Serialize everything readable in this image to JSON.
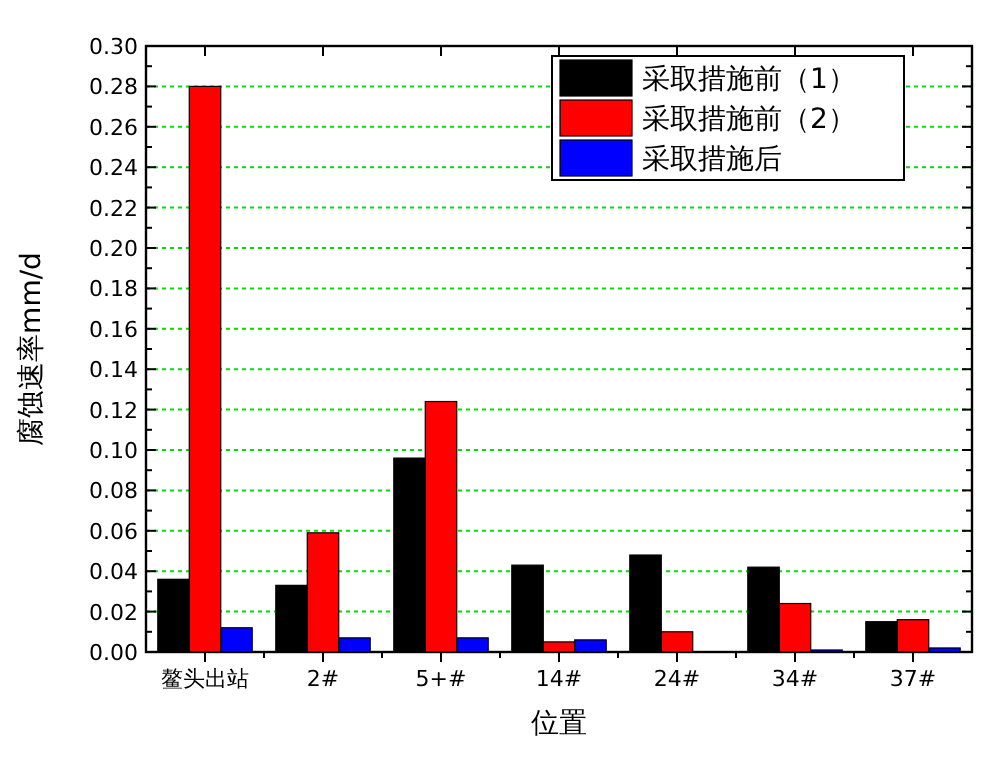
{
  "chart_data": {
    "type": "bar",
    "xlabel": "位置",
    "ylabel": "腐蚀速率mm/d",
    "categories": [
      "鳌头出站",
      "2#",
      "5+#",
      "14#",
      "24#",
      "34#",
      "37#"
    ],
    "series": [
      {
        "name": "采取措施前（1）",
        "color": "#000000",
        "values": [
          0.036,
          0.033,
          0.096,
          0.043,
          0.048,
          0.042,
          0.015
        ]
      },
      {
        "name": "采取措施前（2）",
        "color": "#ff0000",
        "values": [
          0.28,
          0.059,
          0.124,
          0.005,
          0.01,
          0.024,
          0.016
        ]
      },
      {
        "name": "采取措施后",
        "color": "#0000ff",
        "values": [
          0.012,
          0.007,
          0.007,
          0.006,
          0,
          0.001,
          0.002
        ]
      }
    ],
    "ylim": [
      0,
      0.3
    ],
    "yticks": [
      {
        "value": 0,
        "label": "0.00"
      },
      {
        "value": 0.02,
        "label": "0.02"
      },
      {
        "value": 0.04,
        "label": "0.04"
      },
      {
        "value": 0.06,
        "label": "0.06"
      },
      {
        "value": 0.08,
        "label": "0.08"
      },
      {
        "value": 0.1,
        "label": "0.10"
      },
      {
        "value": 0.12,
        "label": "0.12"
      },
      {
        "value": 0.14,
        "label": "0.14"
      },
      {
        "value": 0.16,
        "label": "0.16"
      },
      {
        "value": 0.18,
        "label": "0.18"
      },
      {
        "value": 0.2,
        "label": "0.20"
      },
      {
        "value": 0.22,
        "label": "0.22"
      },
      {
        "value": 0.24,
        "label": "0.24"
      },
      {
        "value": 0.26,
        "label": "0.26"
      },
      {
        "value": 0.28,
        "label": "0.28"
      },
      {
        "value": 0.3,
        "label": "0.30"
      }
    ],
    "grid": "y",
    "legend": "top right"
  }
}
